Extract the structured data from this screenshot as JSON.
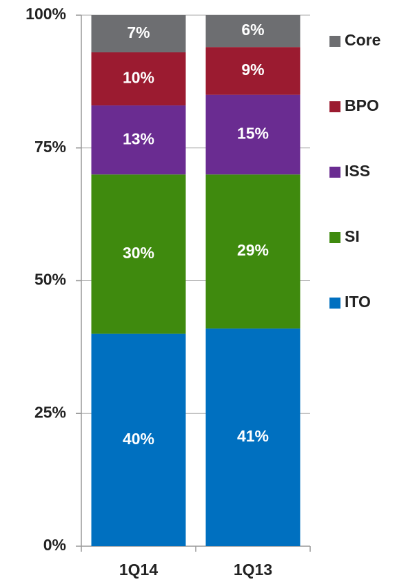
{
  "chart_data": {
    "type": "stacked_bar",
    "categories": [
      "1Q14",
      "1Q13"
    ],
    "series": [
      {
        "name": "ITO",
        "color": "#0070c0",
        "values": [
          40,
          41
        ],
        "value_labels": [
          "40%",
          "41%"
        ]
      },
      {
        "name": "SI",
        "color": "#3f8a0e",
        "values": [
          30,
          29
        ],
        "value_labels": [
          "30%",
          "29%"
        ]
      },
      {
        "name": "ISS",
        "color": "#6a2c91",
        "values": [
          13,
          15
        ],
        "value_labels": [
          "13%",
          "15%"
        ]
      },
      {
        "name": "BPO",
        "color": "#9b1b30",
        "values": [
          10,
          9
        ],
        "value_labels": [
          "10%",
          "9%"
        ]
      },
      {
        "name": "Core",
        "color": "#6d6e71",
        "values": [
          7,
          6
        ],
        "value_labels": [
          "7%",
          "6%"
        ]
      }
    ],
    "ylim": [
      0,
      100
    ],
    "yticks": [
      {
        "value": 0,
        "label": "0%"
      },
      {
        "value": 25,
        "label": "25%"
      },
      {
        "value": 50,
        "label": "50%"
      },
      {
        "value": 75,
        "label": "75%"
      },
      {
        "value": 100,
        "label": "100%"
      }
    ],
    "grid": true
  }
}
